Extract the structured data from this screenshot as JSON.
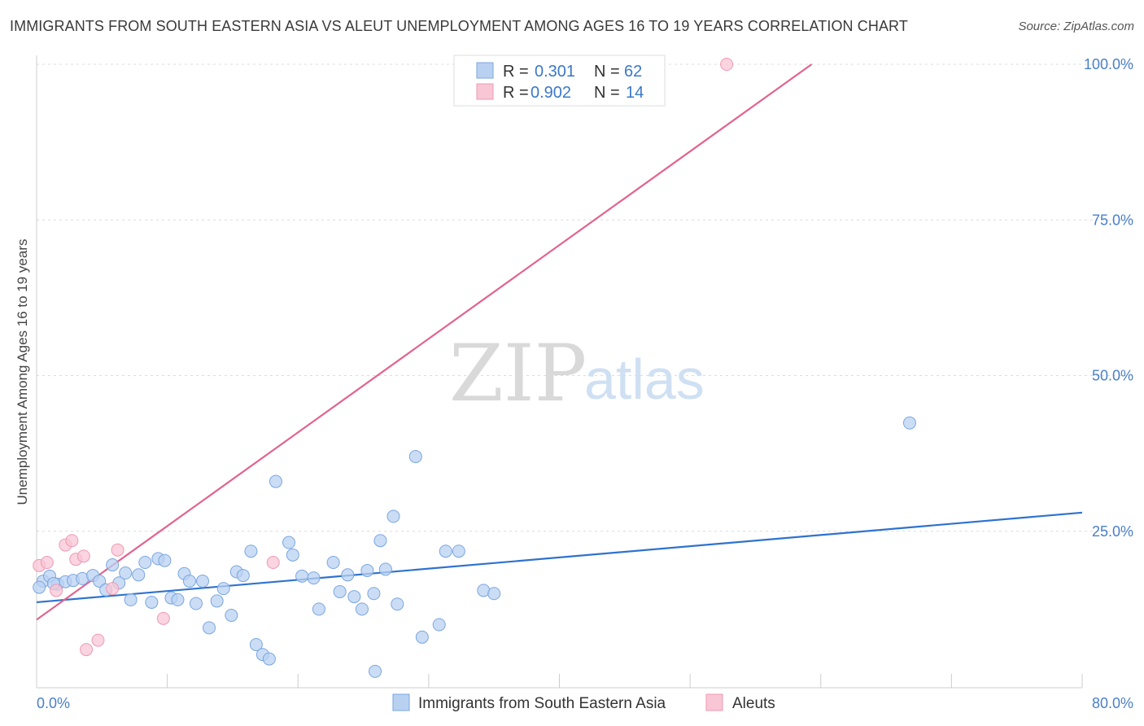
{
  "title": "IMMIGRANTS FROM SOUTH EASTERN ASIA VS ALEUT UNEMPLOYMENT AMONG AGES 16 TO 19 YEARS CORRELATION CHART",
  "source": "Source: ZipAtlas.com",
  "watermark": {
    "zip": "ZIP",
    "atlas": "atlas"
  },
  "colors": {
    "blue_fill": "#b9d1f1",
    "blue_stroke": "#7aa6df",
    "blue_line": "#2f72cf",
    "pink_fill": "#f8c6d5",
    "pink_stroke": "#ee9ab3",
    "pink_line": "#e2638f",
    "grid": "#dcdcdc",
    "axis_text": "#4a7fc9"
  },
  "legend": {
    "rows": [
      {
        "r_label": "R =",
        "r_value": "0.301",
        "n_label": "N =",
        "n_value": "62",
        "series": "blue"
      },
      {
        "r_label": "R =",
        "r_value": "0.902",
        "n_label": "N =",
        "n_value": "14",
        "series": "pink"
      }
    ]
  },
  "chart_data": {
    "type": "scatter",
    "title": "IMMIGRANTS FROM SOUTH EASTERN ASIA VS ALEUT UNEMPLOYMENT AMONG AGES 16 TO 19 YEARS CORRELATION CHART",
    "xlabel": "",
    "ylabel": "Unemployment Among Ages 16 to 19 years",
    "xlim": [
      0,
      80
    ],
    "ylim": [
      0,
      105
    ],
    "x_tick_labels": [
      {
        "value": 0,
        "label": "0.0%"
      },
      {
        "value": 80,
        "label": "80.0%"
      }
    ],
    "y_tick_labels": [
      {
        "value": 25,
        "label": "25.0%"
      },
      {
        "value": 50,
        "label": "50.0%"
      },
      {
        "value": 75,
        "label": "75.0%"
      },
      {
        "value": 100,
        "label": "100.0%"
      }
    ],
    "series": [
      {
        "name": "Immigrants from South Eastern Asia",
        "color": "blue",
        "points": [
          [
            0.5,
            17.0
          ],
          [
            1.0,
            17.8
          ],
          [
            1.6,
            16.5
          ],
          [
            2.2,
            16.9
          ],
          [
            2.8,
            17.1
          ],
          [
            3.5,
            17.4
          ],
          [
            4.3,
            17.9
          ],
          [
            4.8,
            17.0
          ],
          [
            5.3,
            15.6
          ],
          [
            5.8,
            19.6
          ],
          [
            6.3,
            16.7
          ],
          [
            6.8,
            18.3
          ],
          [
            7.2,
            14.0
          ],
          [
            7.8,
            18.0
          ],
          [
            8.3,
            20.0
          ],
          [
            8.8,
            13.6
          ],
          [
            9.3,
            20.6
          ],
          [
            9.8,
            20.3
          ],
          [
            10.3,
            14.3
          ],
          [
            10.8,
            14.0
          ],
          [
            11.3,
            18.2
          ],
          [
            11.7,
            17.0
          ],
          [
            12.2,
            13.4
          ],
          [
            12.7,
            17.0
          ],
          [
            13.2,
            9.5
          ],
          [
            13.8,
            13.8
          ],
          [
            14.3,
            15.8
          ],
          [
            14.9,
            11.5
          ],
          [
            15.3,
            18.5
          ],
          [
            15.8,
            17.9
          ],
          [
            16.4,
            21.8
          ],
          [
            16.8,
            6.8
          ],
          [
            17.3,
            5.2
          ],
          [
            17.8,
            4.5
          ],
          [
            18.3,
            33.0
          ],
          [
            19.3,
            23.2
          ],
          [
            19.6,
            21.2
          ],
          [
            20.3,
            17.8
          ],
          [
            21.2,
            17.5
          ],
          [
            21.6,
            12.5
          ],
          [
            22.7,
            20.0
          ],
          [
            23.2,
            15.3
          ],
          [
            23.8,
            18.0
          ],
          [
            24.3,
            14.5
          ],
          [
            24.9,
            12.5
          ],
          [
            25.3,
            18.7
          ],
          [
            25.8,
            15.0
          ],
          [
            25.9,
            2.5
          ],
          [
            26.3,
            23.5
          ],
          [
            26.7,
            18.9
          ],
          [
            27.3,
            27.4
          ],
          [
            27.6,
            13.3
          ],
          [
            29.0,
            37.0
          ],
          [
            29.5,
            8.0
          ],
          [
            30.8,
            10.0
          ],
          [
            31.3,
            21.8
          ],
          [
            32.3,
            21.8
          ],
          [
            34.2,
            15.5
          ],
          [
            35.0,
            15.0
          ],
          [
            66.8,
            42.4
          ],
          [
            0.2,
            16.0
          ],
          [
            1.3,
            16.6
          ]
        ],
        "trend": {
          "x": [
            0,
            80
          ],
          "y": [
            13.6,
            28.0
          ]
        }
      },
      {
        "name": "Aleuts",
        "color": "pink",
        "points": [
          [
            0.2,
            19.5
          ],
          [
            0.8,
            20.0
          ],
          [
            1.5,
            15.5
          ],
          [
            2.2,
            22.8
          ],
          [
            2.7,
            23.5
          ],
          [
            3.0,
            20.5
          ],
          [
            3.6,
            21.0
          ],
          [
            3.8,
            6.0
          ],
          [
            4.7,
            7.5
          ],
          [
            5.8,
            15.8
          ],
          [
            6.2,
            22.0
          ],
          [
            9.7,
            11.0
          ],
          [
            18.1,
            20.0
          ],
          [
            52.8,
            100.0
          ]
        ],
        "trend": {
          "x": [
            0,
            59.3
          ],
          "y": [
            10.8,
            100.0
          ]
        }
      }
    ]
  },
  "bottom_legend": [
    {
      "label": "Immigrants from South Eastern Asia",
      "series": "blue"
    },
    {
      "label": "Aleuts",
      "series": "pink"
    }
  ]
}
